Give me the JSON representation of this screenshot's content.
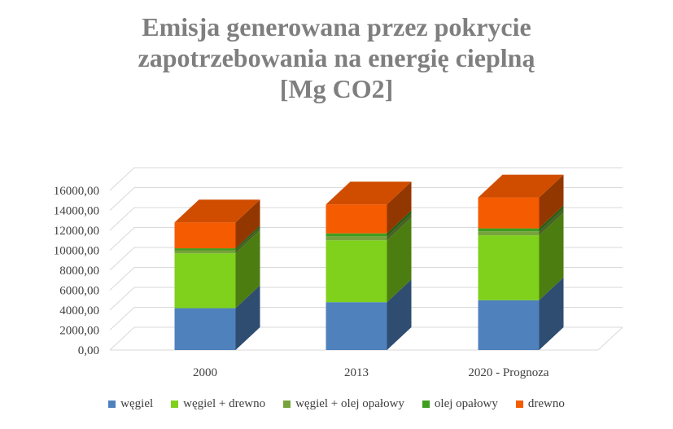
{
  "chart_data": {
    "type": "bar",
    "stacked": true,
    "three_d": true,
    "title_lines": [
      "Emisja generowana przez pokrycie",
      "zapotrzebowania na energię cieplną",
      "[Mg CO2]"
    ],
    "categories": [
      "2000",
      "2013",
      "2020 - Prognoza"
    ],
    "series": [
      {
        "name": "węgiel",
        "color": "#4f81bd",
        "values": [
          4200,
          4800,
          5000
        ]
      },
      {
        "name": "węgiel + drewno",
        "color": "#7fd11b",
        "values": [
          5500,
          6200,
          6500
        ]
      },
      {
        "name": "węgiel + olej opałowy",
        "color": "#77a33c",
        "values": [
          300,
          400,
          400
        ]
      },
      {
        "name": "olej opałowy",
        "color": "#3f9d1f",
        "values": [
          200,
          300,
          300
        ]
      },
      {
        "name": "drewno",
        "color": "#f55b00",
        "values": [
          2600,
          2900,
          3100
        ]
      }
    ],
    "y_ticks": [
      "0,00",
      "2000,00",
      "4000,00",
      "6000,00",
      "8000,00",
      "10000,00",
      "12000,00",
      "14000,00",
      "16000,00"
    ],
    "ylim": [
      0,
      16000
    ],
    "grid": true,
    "legend_position": "bottom"
  }
}
